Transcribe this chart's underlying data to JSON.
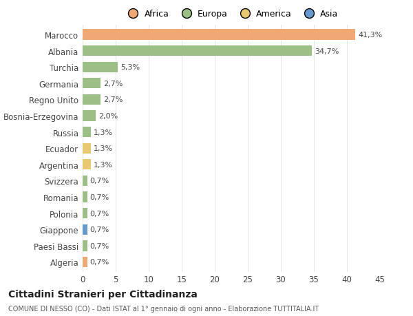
{
  "countries": [
    "Marocco",
    "Albania",
    "Turchia",
    "Germania",
    "Regno Unito",
    "Bosnia-Erzegovina",
    "Russia",
    "Ecuador",
    "Argentina",
    "Svizzera",
    "Romania",
    "Polonia",
    "Giappone",
    "Paesi Bassi",
    "Algeria"
  ],
  "values": [
    41.3,
    34.7,
    5.3,
    2.7,
    2.7,
    2.0,
    1.3,
    1.3,
    1.3,
    0.7,
    0.7,
    0.7,
    0.7,
    0.7,
    0.7
  ],
  "labels": [
    "41,3%",
    "34,7%",
    "5,3%",
    "2,7%",
    "2,7%",
    "2,0%",
    "1,3%",
    "1,3%",
    "1,3%",
    "0,7%",
    "0,7%",
    "0,7%",
    "0,7%",
    "0,7%",
    "0,7%"
  ],
  "colors": [
    "#F0A875",
    "#9BBF85",
    "#9BBF85",
    "#9BBF85",
    "#9BBF85",
    "#9BBF85",
    "#9BBF85",
    "#E8C870",
    "#E8C870",
    "#9BBF85",
    "#9BBF85",
    "#9BBF85",
    "#6699CC",
    "#9BBF85",
    "#F0A875"
  ],
  "continent_colors": {
    "Africa": "#F0A875",
    "Europa": "#9BBF85",
    "America": "#E8C870",
    "Asia": "#6699CC"
  },
  "xlim": [
    0,
    45
  ],
  "xticks": [
    0,
    5,
    10,
    15,
    20,
    25,
    30,
    35,
    40,
    45
  ],
  "title": "Cittadini Stranieri per Cittadinanza",
  "subtitle": "COMUNE DI NESSO (CO) - Dati ISTAT al 1° gennaio di ogni anno - Elaborazione TUTTITALIA.IT",
  "background_color": "#FFFFFF",
  "grid_color": "#E5E5E5"
}
